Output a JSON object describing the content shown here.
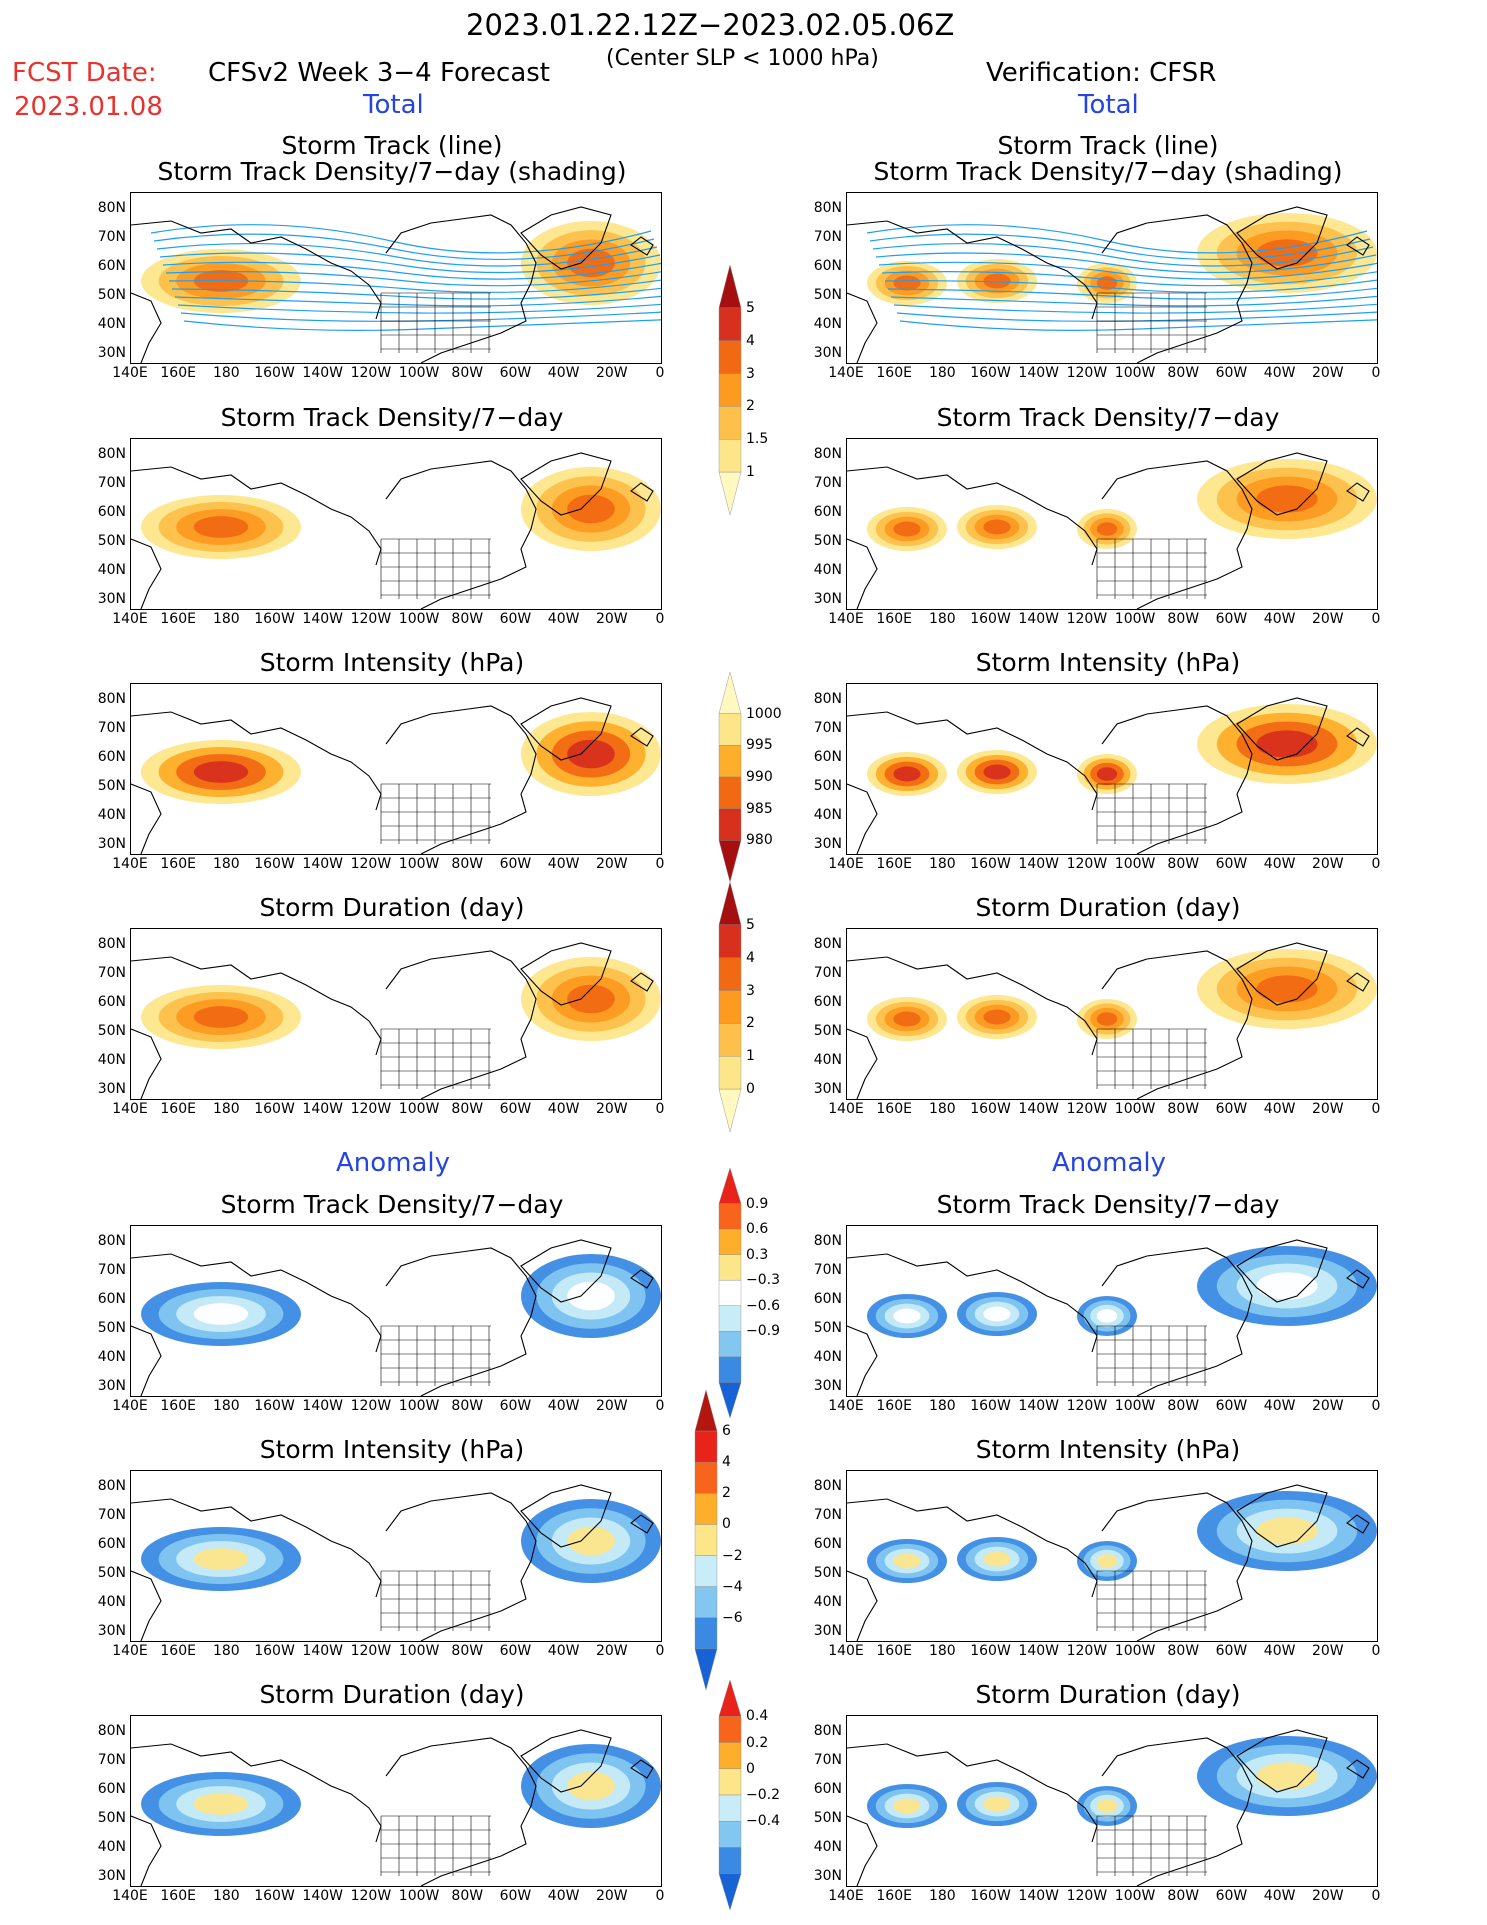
{
  "header": {
    "period": "2023.01.22.12Z−2023.02.05.06Z",
    "condition": "(Center SLP < 1000 hPa)",
    "fcst_label": "FCST Date:",
    "fcst_date": "2023.01.08",
    "model": "CFSv2 Week 3−4 Forecast",
    "verification": "Verification: CFSR",
    "total_left": "Total",
    "total_right": "Total",
    "anomaly_left": "Anomaly",
    "anomaly_right": "Anomaly"
  },
  "panel_titles": {
    "r1a": "Storm Track (line)",
    "r1b": "Storm Track Density/7−day (shading)",
    "r2": "Storm Track Density/7−day",
    "r3": "Storm Intensity (hPa)",
    "r4": "Storm Duration (day)",
    "r5": "Storm Track Density/7−day",
    "r6": "Storm Intensity (hPa)",
    "r7": "Storm Duration (day)"
  },
  "axes": {
    "lat_ticks": [
      "80N",
      "70N",
      "60N",
      "50N",
      "40N",
      "30N"
    ],
    "lon_ticks": [
      "140E",
      "160E",
      "180",
      "160W",
      "140W",
      "120W",
      "100W",
      "80W",
      "60W",
      "40W",
      "20W",
      "0"
    ]
  },
  "colorbars": {
    "density_total": {
      "labels": [
        "5",
        "4",
        "3",
        "2",
        "1.5",
        "1"
      ],
      "colors": [
        "#a50f0f",
        "#d7301f",
        "#f16913",
        "#fd9a20",
        "#fdc04a",
        "#fde68a",
        "#fff8c0"
      ]
    },
    "intensity_total": {
      "labels": [
        "1000",
        "995",
        "990",
        "985",
        "980"
      ],
      "colors": [
        "#fff8c0",
        "#fde68a",
        "#fdae2a",
        "#f16913",
        "#d7301f",
        "#a50f0f"
      ]
    },
    "duration_total": {
      "labels": [
        "5",
        "4",
        "3",
        "2",
        "1",
        "0"
      ],
      "colors": [
        "#a50f0f",
        "#d7301f",
        "#f16913",
        "#fd9a20",
        "#fdc04a",
        "#fde68a",
        "#fff8c0"
      ]
    },
    "density_anom": {
      "labels": [
        "0.9",
        "0.6",
        "0.3",
        "−0.3",
        "−0.6",
        "−0.9"
      ],
      "colors": [
        "#e8231b",
        "#f8641b",
        "#fdae2a",
        "#fde68a",
        "#ffffff",
        "#c8ecf8",
        "#83c7f1",
        "#3a8ae4",
        "#1763d6"
      ]
    },
    "intensity_anom": {
      "labels": [
        "6",
        "4",
        "2",
        "0",
        "−2",
        "−4",
        "−6"
      ],
      "colors": [
        "#b2160f",
        "#e8231b",
        "#f8641b",
        "#fdae2a",
        "#fde68a",
        "#c8ecf8",
        "#83c7f1",
        "#3a8ae4",
        "#1763d6"
      ]
    },
    "duration_anom": {
      "labels": [
        "0.4",
        "0.2",
        "0",
        "−0.2",
        "−0.4"
      ],
      "colors": [
        "#e8231b",
        "#f8641b",
        "#fdae2a",
        "#fde68a",
        "#c8ecf8",
        "#83c7f1",
        "#3a8ae4",
        "#1763d6"
      ]
    }
  }
}
